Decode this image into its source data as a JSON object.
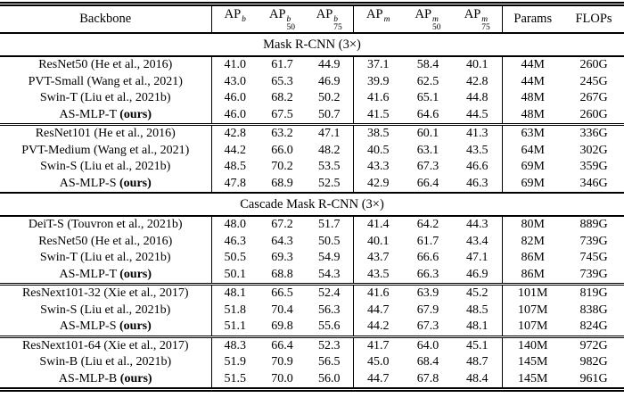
{
  "table": {
    "header": {
      "backbone": "Backbone",
      "cols": [
        {
          "base": "AP",
          "sup": "b",
          "sub": ""
        },
        {
          "base": "AP",
          "sup": "b",
          "sub": "50"
        },
        {
          "base": "AP",
          "sup": "b",
          "sub": "75"
        },
        {
          "base": "AP",
          "sup": "m",
          "sub": ""
        },
        {
          "base": "AP",
          "sup": "m",
          "sub": "50"
        },
        {
          "base": "AP",
          "sup": "m",
          "sub": "75"
        }
      ],
      "params": "Params",
      "flops": "FLOPs"
    },
    "sections": [
      {
        "title": "Mask R-CNN (3×)",
        "groups": [
          {
            "rows": [
              {
                "backbone": "ResNet50 (He et al., 2016)",
                "values": [
                  "41.0",
                  "61.7",
                  "44.9",
                  "37.1",
                  "58.4",
                  "40.1",
                  "44M",
                  "260G"
                ]
              },
              {
                "backbone": "PVT-Small (Wang et al., 2021)",
                "values": [
                  "43.0",
                  "65.3",
                  "46.9",
                  "39.9",
                  "62.5",
                  "42.8",
                  "44M",
                  "245G"
                ]
              },
              {
                "backbone": "Swin-T (Liu et al., 2021b)",
                "values": [
                  "46.0",
                  "68.2",
                  "50.2",
                  "41.6",
                  "65.1",
                  "44.8",
                  "48M",
                  "267G"
                ]
              },
              {
                "backbone": "AS-MLP-T",
                "ours": "(ours)",
                "values": [
                  "46.0",
                  "67.5",
                  "50.7",
                  "41.5",
                  "64.6",
                  "44.5",
                  "48M",
                  "260G"
                ]
              }
            ]
          },
          {
            "rows": [
              {
                "backbone": "ResNet101 (He et al., 2016)",
                "values": [
                  "42.8",
                  "63.2",
                  "47.1",
                  "38.5",
                  "60.1",
                  "41.3",
                  "63M",
                  "336G"
                ]
              },
              {
                "backbone": "PVT-Medium (Wang et al., 2021)",
                "values": [
                  "44.2",
                  "66.0",
                  "48.2",
                  "40.5",
                  "63.1",
                  "43.5",
                  "64M",
                  "302G"
                ]
              },
              {
                "backbone": "Swin-S (Liu et al., 2021b)",
                "values": [
                  "48.5",
                  "70.2",
                  "53.5",
                  "43.3",
                  "67.3",
                  "46.6",
                  "69M",
                  "359G"
                ]
              },
              {
                "backbone": "AS-MLP-S",
                "ours": "(ours)",
                "values": [
                  "47.8",
                  "68.9",
                  "52.5",
                  "42.9",
                  "66.4",
                  "46.3",
                  "69M",
                  "346G"
                ]
              }
            ]
          }
        ]
      },
      {
        "title": "Cascade Mask R-CNN (3×)",
        "groups": [
          {
            "rows": [
              {
                "backbone": "DeiT-S (Touvron et al., 2021b)",
                "values": [
                  "48.0",
                  "67.2",
                  "51.7",
                  "41.4",
                  "64.2",
                  "44.3",
                  "80M",
                  "889G"
                ]
              },
              {
                "backbone": "ResNet50 (He et al., 2016)",
                "values": [
                  "46.3",
                  "64.3",
                  "50.5",
                  "40.1",
                  "61.7",
                  "43.4",
                  "82M",
                  "739G"
                ]
              },
              {
                "backbone": "Swin-T (Liu et al., 2021b)",
                "values": [
                  "50.5",
                  "69.3",
                  "54.9",
                  "43.7",
                  "66.6",
                  "47.1",
                  "86M",
                  "745G"
                ]
              },
              {
                "backbone": "AS-MLP-T",
                "ours": "(ours)",
                "values": [
                  "50.1",
                  "68.8",
                  "54.3",
                  "43.5",
                  "66.3",
                  "46.9",
                  "86M",
                  "739G"
                ]
              }
            ]
          },
          {
            "rows": [
              {
                "backbone": "ResNext101-32 (Xie et al., 2017)",
                "values": [
                  "48.1",
                  "66.5",
                  "52.4",
                  "41.6",
                  "63.9",
                  "45.2",
                  "101M",
                  "819G"
                ]
              },
              {
                "backbone": "Swin-S (Liu et al., 2021b)",
                "values": [
                  "51.8",
                  "70.4",
                  "56.3",
                  "44.7",
                  "67.9",
                  "48.5",
                  "107M",
                  "838G"
                ]
              },
              {
                "backbone": "AS-MLP-S",
                "ours": "(ours)",
                "values": [
                  "51.1",
                  "69.8",
                  "55.6",
                  "44.2",
                  "67.3",
                  "48.1",
                  "107M",
                  "824G"
                ]
              }
            ]
          },
          {
            "rows": [
              {
                "backbone": "ResNext101-64 (Xie et al., 2017)",
                "values": [
                  "48.3",
                  "66.4",
                  "52.3",
                  "41.7",
                  "64.0",
                  "45.1",
                  "140M",
                  "972G"
                ]
              },
              {
                "backbone": "Swin-B (Liu et al., 2021b)",
                "values": [
                  "51.9",
                  "70.9",
                  "56.5",
                  "45.0",
                  "68.4",
                  "48.7",
                  "145M",
                  "982G"
                ]
              },
              {
                "backbone": "AS-MLP-B",
                "ours": "(ours)",
                "values": [
                  "51.5",
                  "70.0",
                  "56.0",
                  "44.7",
                  "67.8",
                  "48.4",
                  "145M",
                  "961G"
                ]
              }
            ]
          }
        ]
      }
    ]
  }
}
